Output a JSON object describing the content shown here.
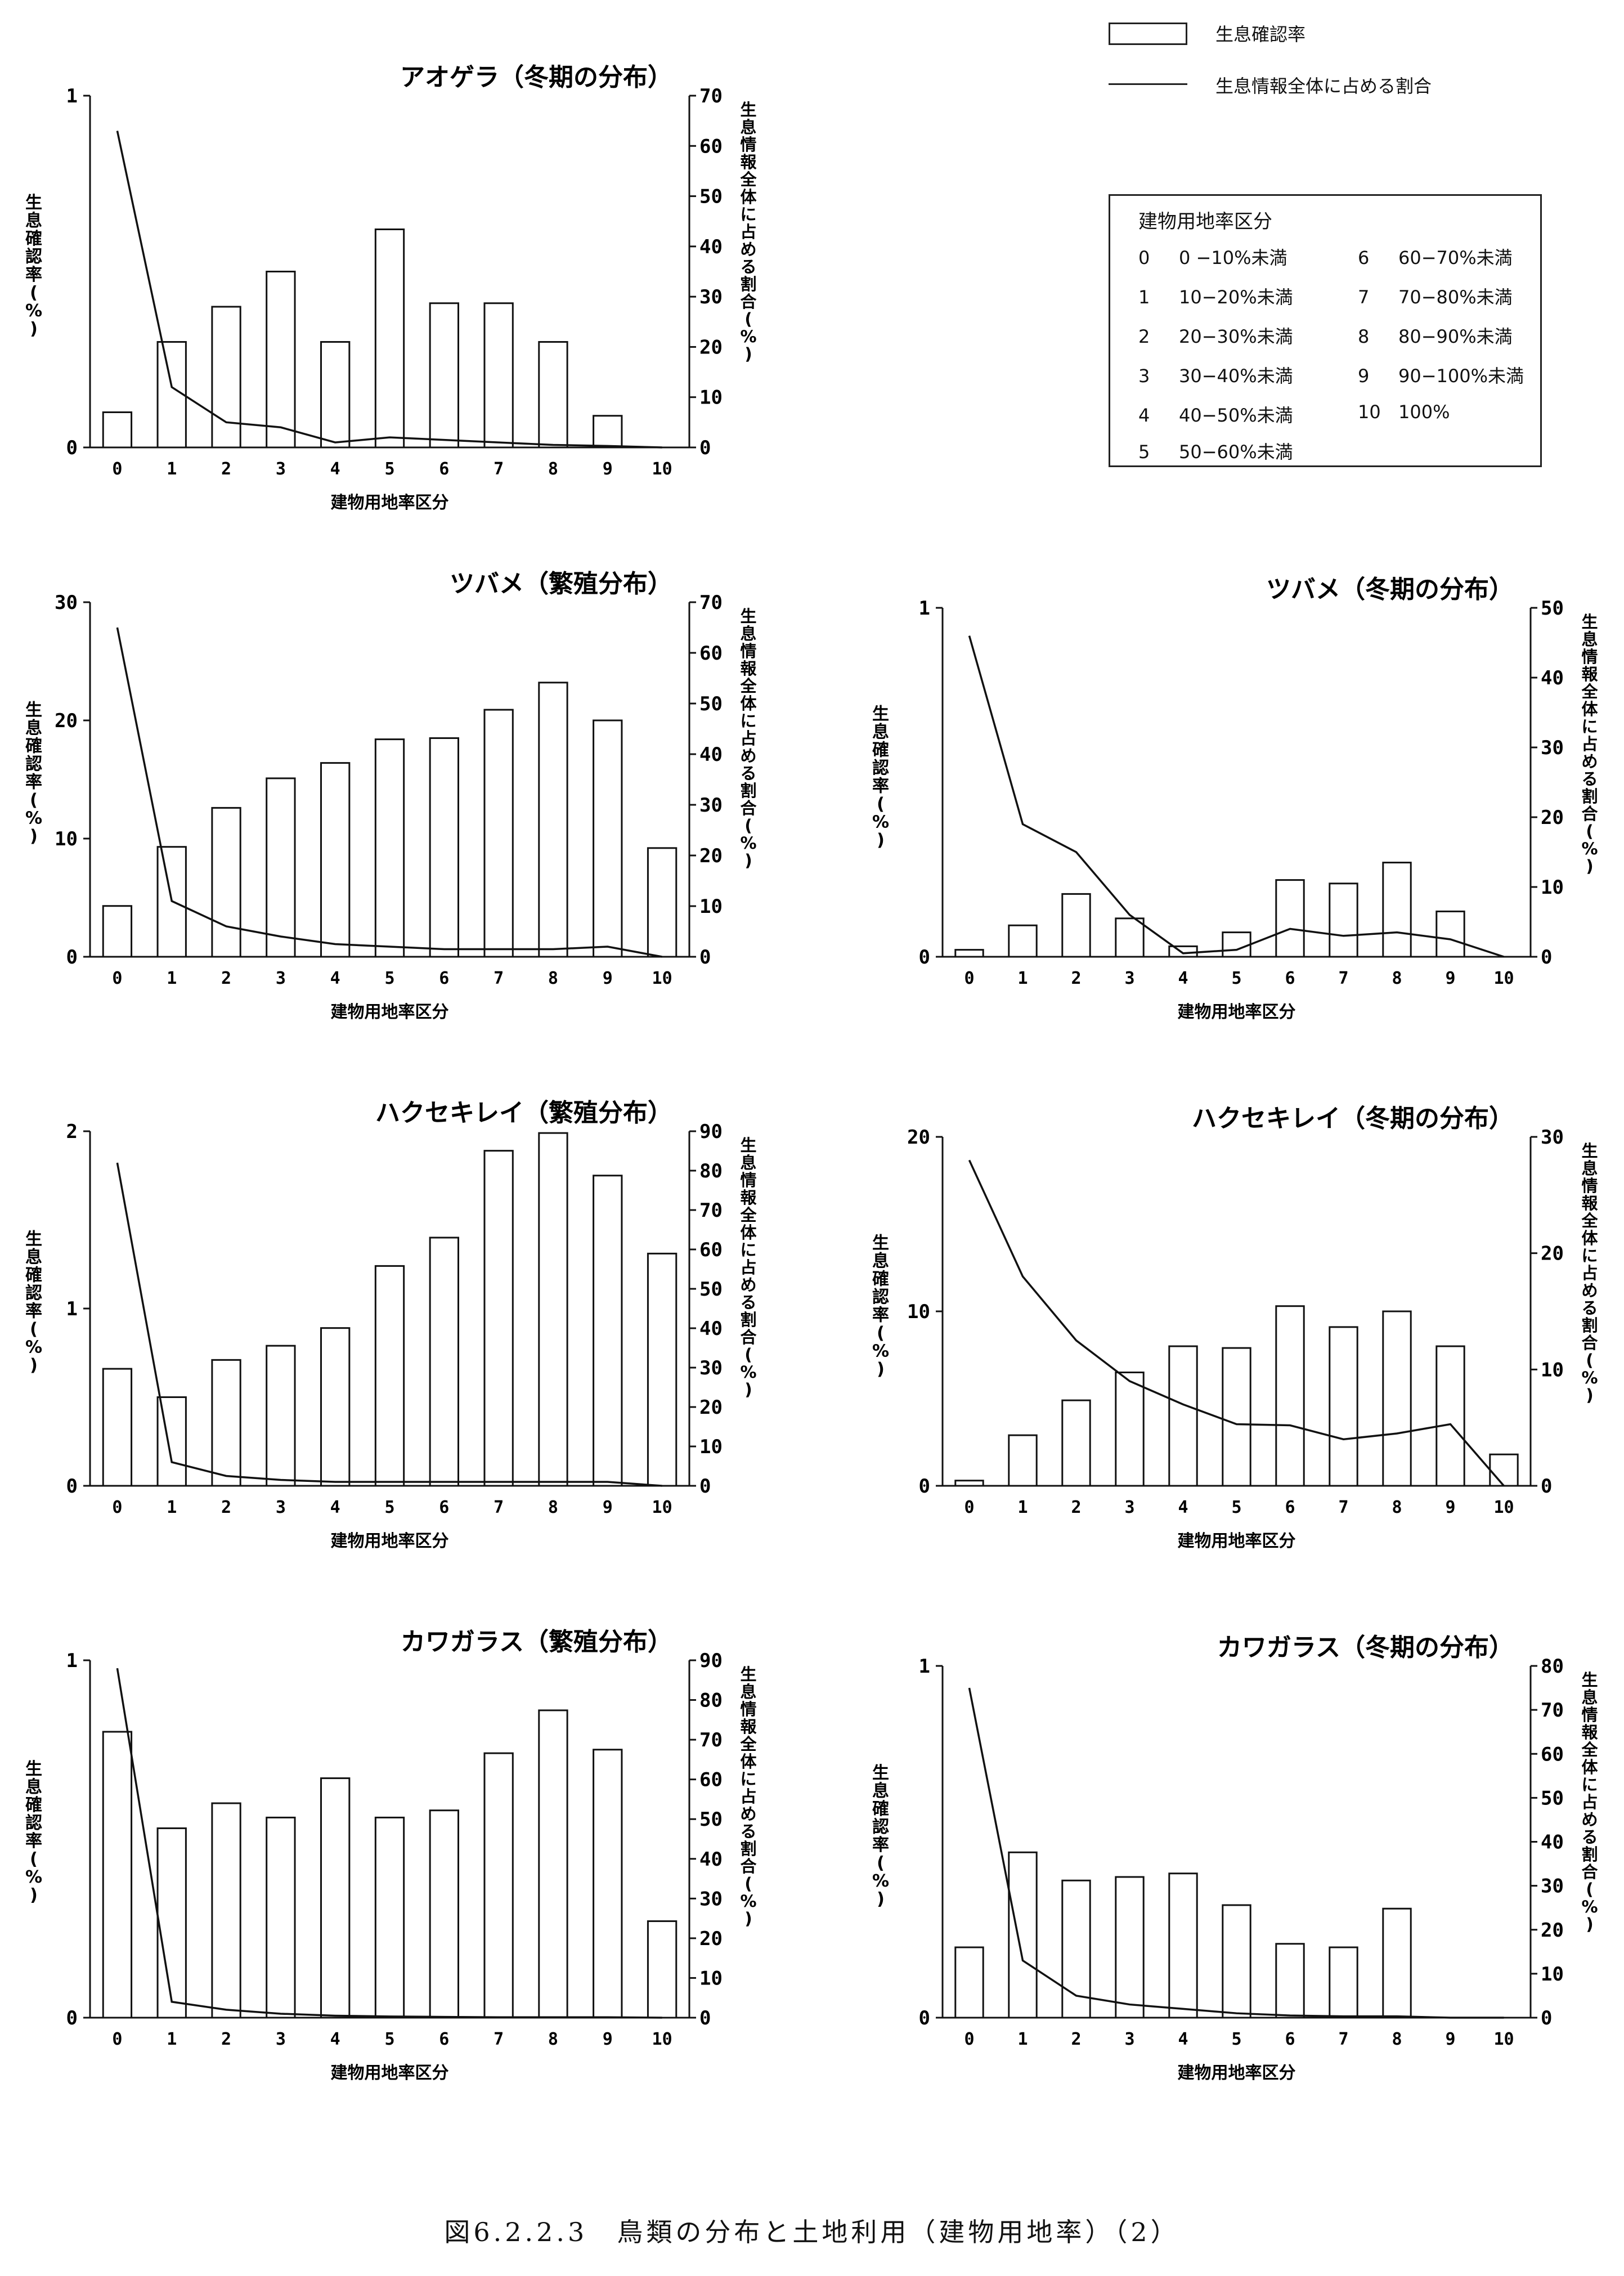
{
  "legend": {
    "bar_label": "生息確認率",
    "line_label": "生息情報全体に占める割合"
  },
  "category_key": {
    "title": "建物用地率区分",
    "items": [
      {
        "code": "0",
        "range": "0 −10%未満"
      },
      {
        "code": "1",
        "range": "10−20%未満"
      },
      {
        "code": "2",
        "range": "20−30%未満"
      },
      {
        "code": "3",
        "range": "30−40%未満"
      },
      {
        "code": "4",
        "range": "40−50%未満"
      },
      {
        "code": "5",
        "range": "50−60%未満"
      },
      {
        "code": "6",
        "range": "60−70%未満"
      },
      {
        "code": "7",
        "range": "70−80%未満"
      },
      {
        "code": "8",
        "range": "80−90%未満"
      },
      {
        "code": "9",
        "range": "90−100%未満"
      },
      {
        "code": "10",
        "range": "100%"
      }
    ]
  },
  "caption": "図6.2.2.3　鳥類の分布と土地利用（建物用地率）（2）",
  "chart_data": [
    {
      "type": "bar",
      "title": "アオゲラ（冬期の分布）",
      "xlabel": "建物用地率区分",
      "ylabel": "生息確認率(%)",
      "y2label": "生息情報全体に占める割合(%)",
      "categories": [
        "0",
        "1",
        "2",
        "3",
        "4",
        "5",
        "6",
        "7",
        "8",
        "9",
        "10"
      ],
      "ylim": [
        0,
        1
      ],
      "yticks": [
        0,
        1
      ],
      "y2lim": [
        0,
        70
      ],
      "y2ticks": [
        0,
        10,
        20,
        30,
        40,
        50,
        60,
        70
      ],
      "series": [
        {
          "axis": "left",
          "kind": "bar",
          "values": [
            0.1,
            0.3,
            0.4,
            0.5,
            0.3,
            0.62,
            0.41,
            0.41,
            0.3,
            0.09,
            0
          ]
        },
        {
          "axis": "right",
          "kind": "line",
          "values": [
            63,
            12,
            5,
            4,
            1,
            2,
            1.5,
            1,
            0.5,
            0.3,
            0
          ]
        }
      ]
    },
    {
      "type": "bar",
      "title": "ツバメ（繁殖分布）",
      "xlabel": "建物用地率区分",
      "ylabel": "生息確認率(%)",
      "y2label": "生息情報全体に占める割合(%)",
      "categories": [
        "0",
        "1",
        "2",
        "3",
        "4",
        "5",
        "6",
        "7",
        "8",
        "9",
        "10"
      ],
      "ylim": [
        0,
        30
      ],
      "yticks": [
        0,
        10,
        20,
        30
      ],
      "y2lim": [
        0,
        70
      ],
      "y2ticks": [
        0,
        10,
        20,
        30,
        40,
        50,
        60,
        70
      ],
      "series": [
        {
          "axis": "left",
          "kind": "bar",
          "values": [
            4.3,
            9.3,
            12.6,
            15.1,
            16.4,
            18.4,
            18.5,
            20.9,
            23.2,
            20.0,
            9.2
          ]
        },
        {
          "axis": "right",
          "kind": "line",
          "values": [
            65,
            11,
            6,
            4,
            2.5,
            2,
            1.5,
            1.5,
            1.5,
            2,
            0
          ]
        }
      ]
    },
    {
      "type": "bar",
      "title": "ツバメ（冬期の分布）",
      "xlabel": "建物用地率区分",
      "ylabel": "生息確認率(%)",
      "y2label": "生息情報全体に占める割合(%)",
      "categories": [
        "0",
        "1",
        "2",
        "3",
        "4",
        "5",
        "6",
        "7",
        "8",
        "9",
        "10"
      ],
      "ylim": [
        0,
        1
      ],
      "yticks": [
        0,
        1
      ],
      "y2lim": [
        0,
        50
      ],
      "y2ticks": [
        0,
        10,
        20,
        30,
        40,
        50
      ],
      "series": [
        {
          "axis": "left",
          "kind": "bar",
          "values": [
            0.02,
            0.09,
            0.18,
            0.11,
            0.03,
            0.07,
            0.22,
            0.21,
            0.27,
            0.13,
            0
          ]
        },
        {
          "axis": "right",
          "kind": "line",
          "values": [
            46,
            19,
            15,
            6,
            0.5,
            1,
            4,
            3,
            3.5,
            2.5,
            0
          ]
        }
      ]
    },
    {
      "type": "bar",
      "title": "ハクセキレイ（繁殖分布）",
      "xlabel": "建物用地率区分",
      "ylabel": "生息確認率(%)",
      "y2label": "生息情報全体に占める割合(%)",
      "categories": [
        "0",
        "1",
        "2",
        "3",
        "4",
        "5",
        "6",
        "7",
        "8",
        "9",
        "10"
      ],
      "ylim": [
        0,
        2
      ],
      "yticks": [
        0,
        1,
        2
      ],
      "y2lim": [
        0,
        90
      ],
      "y2ticks": [
        0,
        10,
        20,
        30,
        40,
        50,
        60,
        70,
        80,
        90
      ],
      "series": [
        {
          "axis": "left",
          "kind": "bar",
          "values": [
            0.66,
            0.5,
            0.71,
            0.79,
            0.89,
            1.24,
            1.4,
            1.89,
            1.99,
            1.75,
            1.31
          ]
        },
        {
          "axis": "right",
          "kind": "line",
          "values": [
            82,
            6,
            2.5,
            1.5,
            1,
            1,
            1,
            1,
            1,
            1,
            0
          ]
        }
      ]
    },
    {
      "type": "bar",
      "title": "ハクセキレイ（冬期の分布）",
      "xlabel": "建物用地率区分",
      "ylabel": "生息確認率(%)",
      "y2label": "生息情報全体に占める割合(%)",
      "categories": [
        "0",
        "1",
        "2",
        "3",
        "4",
        "5",
        "6",
        "7",
        "8",
        "9",
        "10"
      ],
      "ylim": [
        0,
        20
      ],
      "yticks": [
        0,
        10,
        20
      ],
      "y2lim": [
        0,
        30
      ],
      "y2ticks": [
        0,
        10,
        20,
        30
      ],
      "series": [
        {
          "axis": "left",
          "kind": "bar",
          "values": [
            0.3,
            2.9,
            4.9,
            6.5,
            8.0,
            7.9,
            10.3,
            9.1,
            10.0,
            8.0,
            1.8
          ]
        },
        {
          "axis": "right",
          "kind": "line",
          "values": [
            28,
            18,
            12.5,
            9,
            7,
            5.3,
            5.2,
            4,
            4.5,
            5.3,
            0
          ]
        }
      ]
    },
    {
      "type": "bar",
      "title": "カワガラス（繁殖分布）",
      "xlabel": "建物用地率区分",
      "ylabel": "生息確認率(%)",
      "y2label": "生息情報全体に占める割合(%)",
      "categories": [
        "0",
        "1",
        "2",
        "3",
        "4",
        "5",
        "6",
        "7",
        "8",
        "9",
        "10"
      ],
      "ylim": [
        0,
        1
      ],
      "yticks": [
        0,
        1
      ],
      "y2lim": [
        0,
        90
      ],
      "y2ticks": [
        0,
        10,
        20,
        30,
        40,
        50,
        60,
        70,
        80,
        90
      ],
      "series": [
        {
          "axis": "left",
          "kind": "bar",
          "values": [
            0.8,
            0.53,
            0.6,
            0.56,
            0.67,
            0.56,
            0.58,
            0.74,
            0.86,
            0.75,
            0.27
          ]
        },
        {
          "axis": "right",
          "kind": "line",
          "values": [
            88,
            4,
            2,
            1,
            0.5,
            0.3,
            0.2,
            0.1,
            0.1,
            0.1,
            0
          ]
        }
      ]
    },
    {
      "type": "bar",
      "title": "カワガラス（冬期の分布）",
      "xlabel": "建物用地率区分",
      "ylabel": "生息確認率(%)",
      "y2label": "生息情報全体に占める割合(%)",
      "categories": [
        "0",
        "1",
        "2",
        "3",
        "4",
        "5",
        "6",
        "7",
        "8",
        "9",
        "10"
      ],
      "ylim": [
        0,
        1
      ],
      "yticks": [
        0,
        1
      ],
      "y2lim": [
        0,
        80
      ],
      "y2ticks": [
        0,
        10,
        20,
        30,
        40,
        50,
        60,
        70,
        80
      ],
      "series": [
        {
          "axis": "left",
          "kind": "bar",
          "values": [
            0.2,
            0.47,
            0.39,
            0.4,
            0.41,
            0.32,
            0.21,
            0.2,
            0.31,
            0,
            0
          ]
        },
        {
          "axis": "right",
          "kind": "line",
          "values": [
            75,
            13,
            5,
            3,
            2,
            1,
            0.5,
            0.3,
            0.3,
            0,
            0
          ]
        }
      ]
    }
  ]
}
